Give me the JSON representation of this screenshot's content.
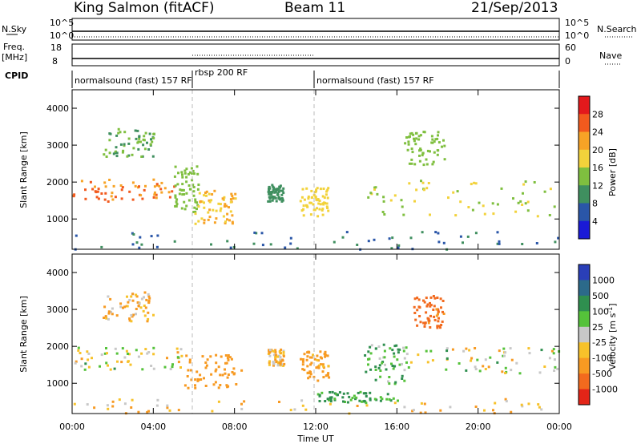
{
  "header": {
    "station": "King Salmon (fitACF)",
    "beam": "Beam 11",
    "date": "21/Sep/2013"
  },
  "top_panels": {
    "nsky_label": "N.Sky",
    "nsky_ticks": [
      "10^5",
      "10^0"
    ],
    "nsearch_label": "N.Search",
    "nsearch_ticks": [
      "10^5",
      "10^0"
    ],
    "freq_label_1": "Freq.",
    "freq_label_2": "[MHz]",
    "freq_ticks": [
      "18",
      "8"
    ],
    "nave_label": "Nave",
    "nave_ticks": [
      "60",
      "0"
    ],
    "cpid_label": "CPID",
    "cpid_segments": [
      {
        "label": "normalsound (fast) 157 RF",
        "start_h": 0,
        "end_h": 6
      },
      {
        "label": "rbsp 200 RF",
        "start_h": 6,
        "end_h": 12
      },
      {
        "label": "normalsound (fast) 157 RF",
        "start_h": 12,
        "end_h": 24
      }
    ]
  },
  "axes": {
    "ylabel": "Slant Range [km]",
    "yticks": [
      "1000",
      "2000",
      "3000",
      "4000"
    ],
    "xlabel": "Time UT",
    "xticks": [
      "00:00",
      "04:00",
      "08:00",
      "12:00",
      "16:00",
      "20:00",
      "00:00"
    ]
  },
  "power_colorbar": {
    "label": "Power [dB]",
    "ticks": [
      "28",
      "24",
      "20",
      "16",
      "12",
      "8",
      "4"
    ],
    "colors": [
      "#e3191c",
      "#f25a1e",
      "#f7a326",
      "#f2d23b",
      "#7fbf3f",
      "#3f8f5f",
      "#2a56a8",
      "#1a1ad6"
    ]
  },
  "velocity_colorbar": {
    "label": "Velocity [m s",
    "label_sup": "-1",
    "label_close": "]",
    "ticks": [
      "1000",
      "500",
      "100",
      "25",
      "-25",
      "-100",
      "-500",
      "-1000"
    ],
    "colors": [
      "#2a3fb8",
      "#2c6a8a",
      "#2f8f4f",
      "#55c23a",
      "#c8c8c8",
      "#f7c22a",
      "#f79a22",
      "#f26a1e",
      "#e32518"
    ]
  },
  "chart_data": [
    {
      "type": "heatmap",
      "title": "Power",
      "xlabel": "Time UT",
      "ylabel": "Slant Range [km]",
      "xlim": [
        0,
        24
      ],
      "ylim": [
        180,
        4500
      ],
      "colorbar": "Power [dB]",
      "clim": [
        0,
        30
      ],
      "regions": [
        {
          "t0": 0.0,
          "t1": 5.0,
          "r0": 1500,
          "r1": 2100,
          "value": 22
        },
        {
          "t0": 1.5,
          "t1": 4.0,
          "r0": 2700,
          "r1": 3500,
          "value": 10
        },
        {
          "t0": 5.0,
          "t1": 6.2,
          "r0": 1200,
          "r1": 2500,
          "value": 12
        },
        {
          "t0": 6.0,
          "t1": 8.0,
          "r0": 900,
          "r1": 1800,
          "value": 18
        },
        {
          "t0": 9.6,
          "t1": 10.4,
          "r0": 1500,
          "r1": 1950,
          "value": 8
        },
        {
          "t0": 11.2,
          "t1": 12.6,
          "r0": 1100,
          "r1": 1900,
          "value": 16
        },
        {
          "t0": 14.5,
          "t1": 24.0,
          "r0": 1100,
          "r1": 2100,
          "value": 14
        },
        {
          "t0": 16.3,
          "t1": 18.3,
          "r0": 2500,
          "r1": 3400,
          "value": 12
        },
        {
          "t0": 0.0,
          "t1": 24.0,
          "r0": 200,
          "r1": 700,
          "value": 6
        }
      ]
    },
    {
      "type": "heatmap",
      "title": "Velocity",
      "xlabel": "Time UT",
      "ylabel": "Slant Range [km]",
      "xlim": [
        0,
        24
      ],
      "ylim": [
        180,
        4500
      ],
      "colorbar": "Velocity [m s-1]",
      "clim": [
        -1000,
        1000
      ],
      "regions": [
        {
          "t0": 0.0,
          "t1": 5.5,
          "r0": 1400,
          "r1": 2000,
          "value": 0
        },
        {
          "t0": 1.5,
          "t1": 4.0,
          "r0": 2700,
          "r1": 3500,
          "value": -100
        },
        {
          "t0": 5.5,
          "t1": 8.3,
          "r0": 900,
          "r1": 1800,
          "value": -300
        },
        {
          "t0": 9.6,
          "t1": 10.4,
          "r0": 1500,
          "r1": 1950,
          "value": -100
        },
        {
          "t0": 11.2,
          "t1": 12.6,
          "r0": 1100,
          "r1": 1900,
          "value": -200
        },
        {
          "t0": 14.3,
          "t1": 16.5,
          "r0": 1000,
          "r1": 2100,
          "value": 100
        },
        {
          "t0": 16.5,
          "t1": 24.0,
          "r0": 1300,
          "r1": 2000,
          "value": 0
        },
        {
          "t0": 16.8,
          "t1": 18.3,
          "r0": 2500,
          "r1": 3400,
          "value": -600
        },
        {
          "t0": 12.0,
          "t1": 16.0,
          "r0": 500,
          "r1": 800,
          "value": 150
        },
        {
          "t0": 0.0,
          "t1": 24.0,
          "r0": 200,
          "r1": 600,
          "value": -100
        }
      ]
    }
  ]
}
